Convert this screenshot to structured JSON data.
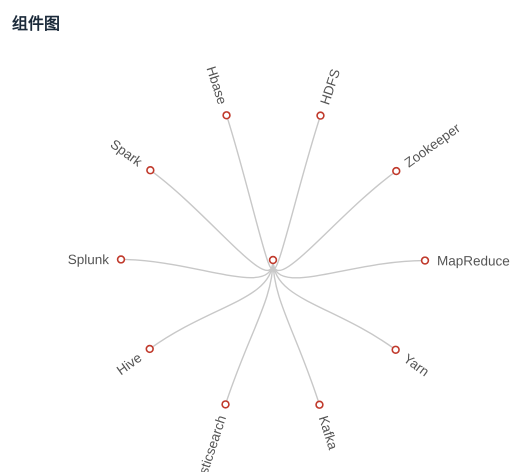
{
  "panel": {
    "title": "组件图"
  },
  "diagram": {
    "center": "",
    "nodes": [
      {
        "id": "hbase",
        "label": "Hbase"
      },
      {
        "id": "hdfs",
        "label": "HDFS"
      },
      {
        "id": "zookeeper",
        "label": "Zookeeper"
      },
      {
        "id": "mapreduce",
        "label": "MapReduce"
      },
      {
        "id": "yarn",
        "label": "Yarn"
      },
      {
        "id": "kafka",
        "label": "Kafka"
      },
      {
        "id": "elasticsearch",
        "label": "Elasticsearch"
      },
      {
        "id": "hive",
        "label": "Hive"
      },
      {
        "id": "splunk",
        "label": "Splunk"
      },
      {
        "id": "spark",
        "label": "Spark"
      }
    ],
    "colors": {
      "edge": "#c8c8c8",
      "node_stroke": "#c0392b",
      "label": "#555555"
    }
  }
}
